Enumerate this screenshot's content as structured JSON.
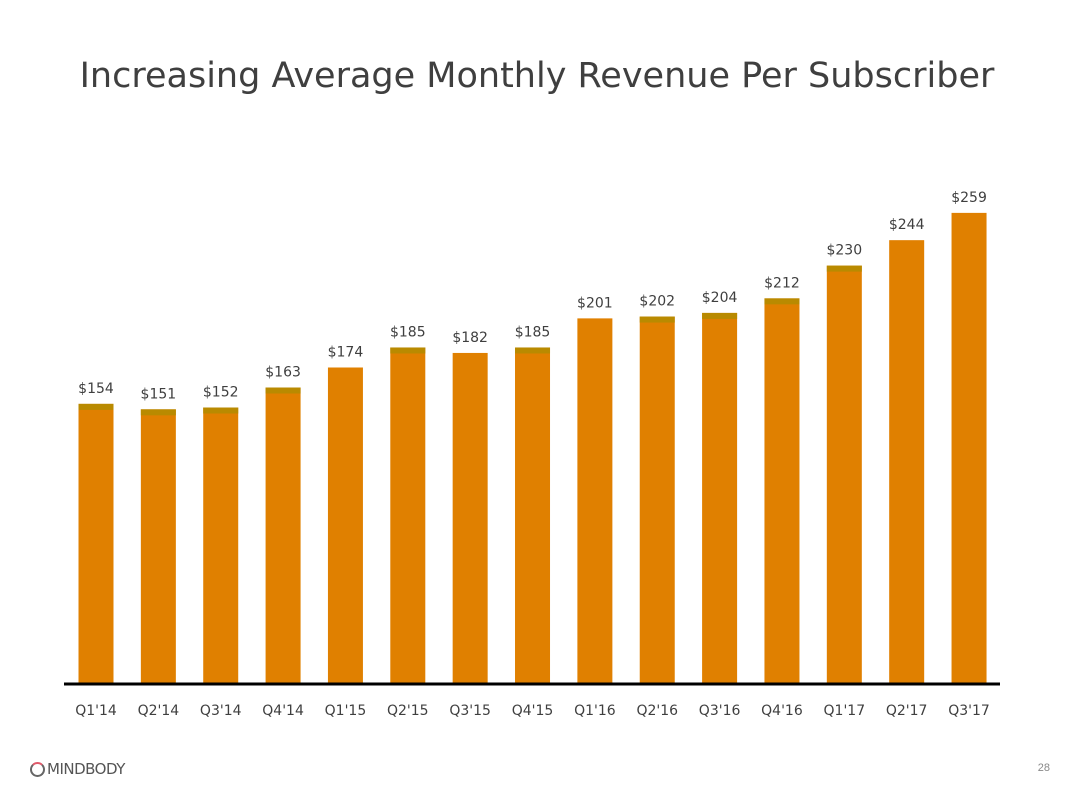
{
  "title": "Increasing Average Monthly Revenue Per Subscriber",
  "footer": {
    "logo": "MINDBODY",
    "page_number": "28"
  },
  "colors": {
    "bar": "#e08000",
    "bar_top": "#b98a00",
    "axis": "#000000"
  },
  "chart_data": {
    "type": "bar",
    "title": "Increasing Average Monthly Revenue Per Subscriber",
    "categories": [
      "Q1'14",
      "Q2'14",
      "Q3'14",
      "Q4'14",
      "Q1'15",
      "Q2'15",
      "Q3'15",
      "Q4'15",
      "Q1'16",
      "Q2'16",
      "Q3'16",
      "Q4'16",
      "Q1'17",
      "Q2'17",
      "Q3'17"
    ],
    "values": [
      154,
      151,
      152,
      163,
      174,
      185,
      182,
      185,
      201,
      202,
      204,
      212,
      230,
      244,
      259
    ],
    "data_labels": [
      "$154",
      "$151",
      "$152",
      "$163",
      "$174",
      "$185",
      "$182",
      "$185",
      "$201",
      "$202",
      "$204",
      "$212",
      "$230",
      "$244",
      "$259"
    ],
    "xlabel": "",
    "ylabel": "",
    "ylim": [
      0,
      376
    ],
    "grid": false,
    "legend": "none"
  }
}
